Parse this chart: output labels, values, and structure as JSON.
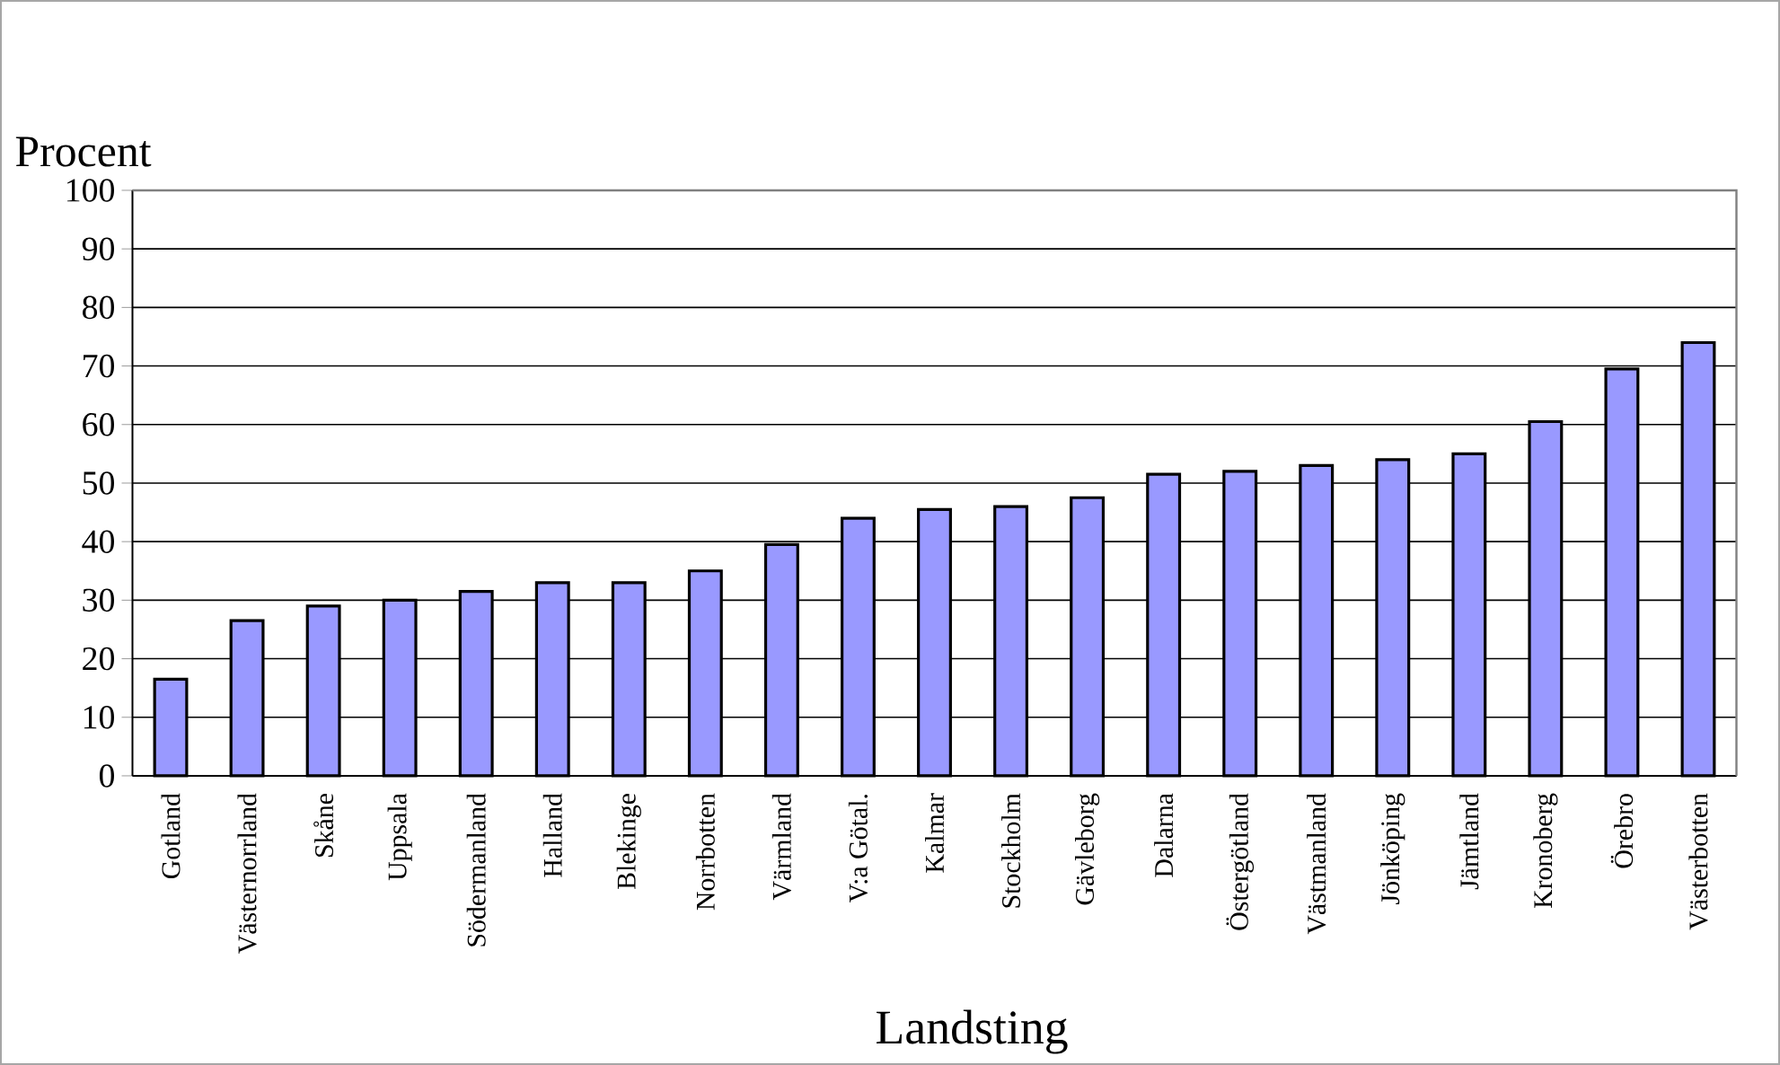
{
  "chart_data": {
    "type": "bar",
    "ylabel": "Procent",
    "xlabel": "Landsting",
    "categories": [
      "Gotland",
      "Västernorrland",
      "Skåne",
      "Uppsala",
      "Södermanland",
      "Halland",
      "Blekinge",
      "Norrbotten",
      "Värmland",
      "V:a Götal.",
      "Kalmar",
      "Stockholm",
      "Gävleborg",
      "Dalarna",
      "Östergötland",
      "Västmanland",
      "Jönköping",
      "Jämtland",
      "Kronoberg",
      "Örebro",
      "Västerbotten"
    ],
    "values": [
      16.5,
      26.5,
      29,
      30,
      31.5,
      33,
      33,
      35,
      39.5,
      44,
      45.5,
      46,
      47.5,
      51.5,
      52,
      53,
      54,
      55,
      60.5,
      69.5,
      74
    ],
    "color": "#9999ff",
    "ylim": [
      0,
      100
    ],
    "yticks": [
      0,
      10,
      20,
      30,
      40,
      50,
      60,
      70,
      80,
      90,
      100
    ],
    "grid": "y"
  }
}
